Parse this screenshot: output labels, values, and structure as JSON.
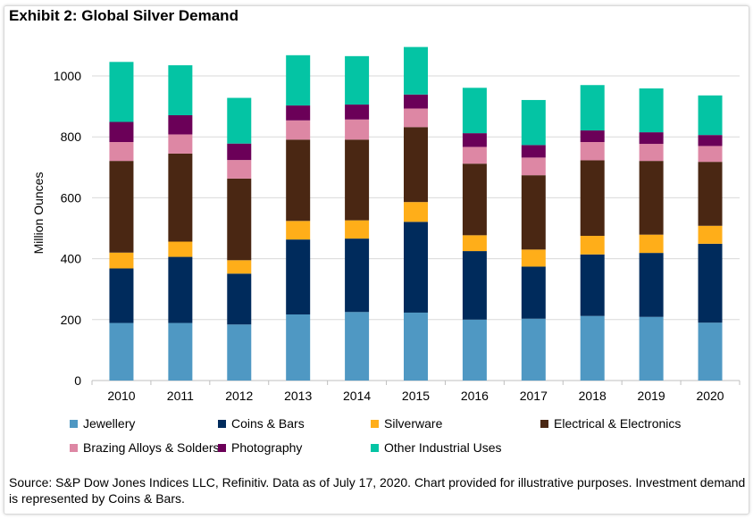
{
  "title": "Exhibit 2: Global Silver Demand",
  "source": "Source: S&P Dow Jones Indices LLC, Refinitiv. Data as of July 17, 2020. Chart provided for illustrative purposes. Investment demand is represented by Coins & Bars.",
  "chart_data": {
    "type": "bar",
    "stacked": true,
    "title": "Exhibit 2: Global Silver Demand",
    "xlabel": "",
    "ylabel": "Million Ounces",
    "ylim": [
      0,
      1100
    ],
    "yticks": [
      0,
      200,
      400,
      600,
      800,
      1000
    ],
    "grid": true,
    "legend_position": "bottom",
    "categories": [
      "2010",
      "2011",
      "2012",
      "2013",
      "2014",
      "2015",
      "2016",
      "2017",
      "2018",
      "2019",
      "2020"
    ],
    "series": [
      {
        "name": "Jewellery",
        "color": "#4f98c3",
        "values": [
          189,
          189,
          184,
          217,
          225,
          223,
          200,
          203,
          212,
          209,
          190
        ]
      },
      {
        "name": "Coins & Bars",
        "color": "#002b5c",
        "values": [
          179,
          217,
          167,
          246,
          241,
          298,
          225,
          171,
          202,
          210,
          259
        ]
      },
      {
        "name": "Silverware",
        "color": "#ffae19",
        "values": [
          52,
          50,
          44,
          61,
          60,
          65,
          52,
          56,
          61,
          60,
          59
        ]
      },
      {
        "name": "Electrical & Electronics",
        "color": "#4a2713",
        "values": [
          301,
          289,
          268,
          267,
          265,
          246,
          235,
          244,
          248,
          242,
          210
        ]
      },
      {
        "name": "Brazing Alloys & Solders",
        "color": "#dd87a4",
        "values": [
          62,
          63,
          61,
          63,
          66,
          61,
          55,
          58,
          60,
          56,
          52
        ]
      },
      {
        "name": "Photography",
        "color": "#6b0058",
        "values": [
          66,
          63,
          54,
          49,
          49,
          46,
          45,
          41,
          38,
          38,
          36
        ]
      },
      {
        "name": "Other Industrial Uses",
        "color": "#04c4a4",
        "values": [
          197,
          164,
          150,
          165,
          159,
          156,
          149,
          148,
          149,
          144,
          130
        ]
      }
    ]
  }
}
